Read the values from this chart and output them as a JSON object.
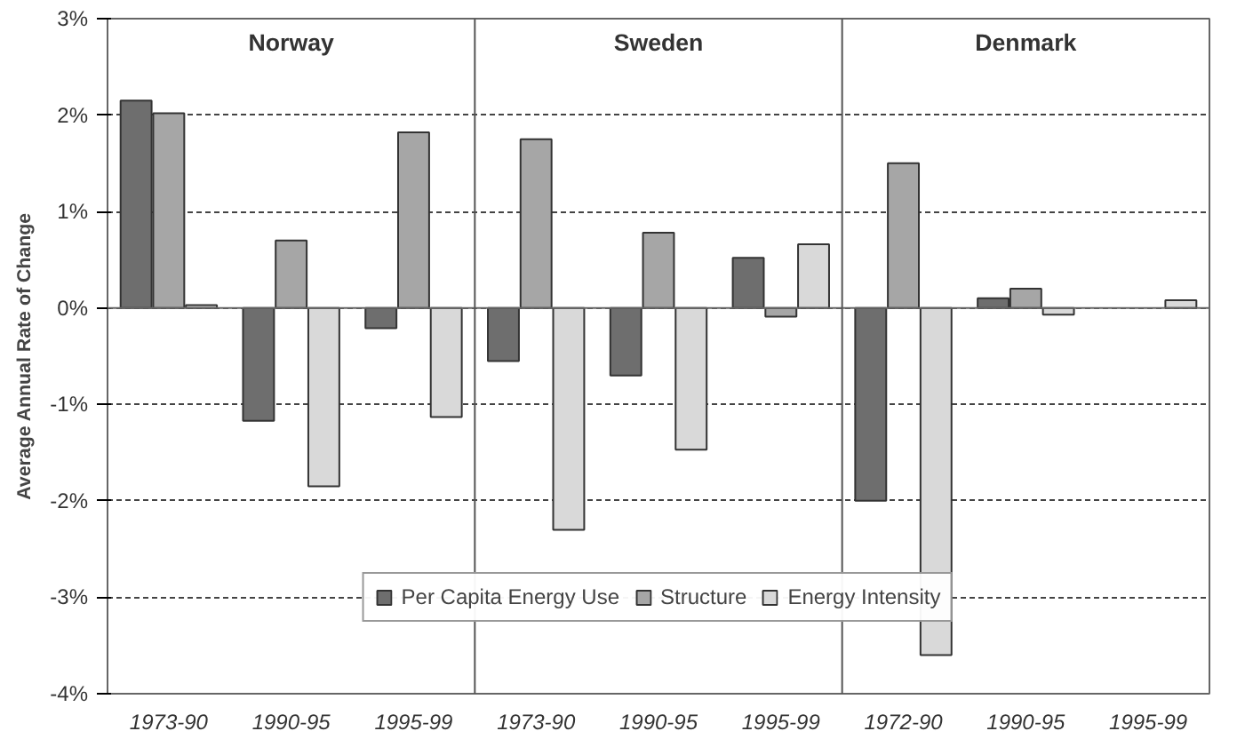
{
  "chart_data": {
    "type": "bar",
    "ylabel": "Average Annual Rate of Change",
    "categories": [
      "1973-90",
      "1990-95",
      "1995-99",
      "1973-90",
      "1990-95",
      "1995-99",
      "1972-90",
      "1990-95",
      "1995-99"
    ],
    "series": [
      {
        "name": "Per Capita Energy Use",
        "color": "#6e6e6e",
        "values": [
          2.15,
          -1.17,
          -0.21,
          -0.55,
          -0.7,
          0.52,
          -2.0,
          0.1,
          null
        ]
      },
      {
        "name": "Structure",
        "color": "#a6a6a6",
        "values": [
          2.02,
          0.7,
          1.82,
          1.75,
          0.78,
          -0.09,
          1.5,
          0.2,
          null
        ]
      },
      {
        "name": "Energy Intensity",
        "color": "#d9d9d9",
        "values": [
          0.03,
          -1.85,
          -1.13,
          -2.3,
          -1.47,
          0.66,
          -3.6,
          -0.07,
          0.08
        ]
      }
    ],
    "annotations": [
      "Norway",
      "Sweden",
      "Denmark"
    ],
    "ylim": [
      -4,
      3
    ],
    "yticks": [
      {
        "value": -4,
        "label": "-4%"
      },
      {
        "value": -3,
        "label": "-3%"
      },
      {
        "value": -2,
        "label": "-2%"
      },
      {
        "value": -1,
        "label": "-1%"
      },
      {
        "value": 0,
        "label": "0%"
      },
      {
        "value": 1,
        "label": "1%"
      },
      {
        "value": 2,
        "label": "2%"
      },
      {
        "value": 3,
        "label": "3%"
      }
    ],
    "grid": "y",
    "legend": "bottom"
  }
}
